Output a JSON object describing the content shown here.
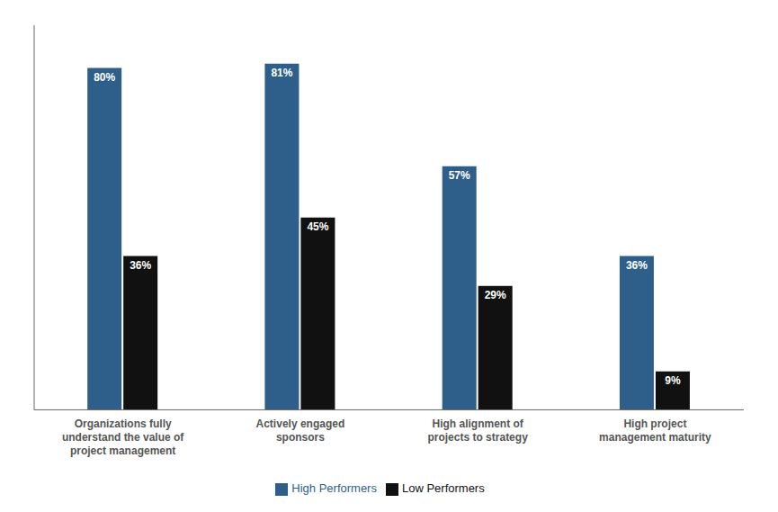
{
  "chart_data": {
    "type": "bar",
    "categories": [
      "Organizations fully\nunderstand the value of\nproject management",
      "Actively engaged\nsponsors",
      "High alignment of\nprojects to strategy",
      "High project\nmanagement maturity"
    ],
    "series": [
      {
        "name": "High Performers",
        "color": "#2E5F8A",
        "values": [
          80,
          81,
          57,
          36
        ],
        "value_labels": [
          "80%",
          "81%",
          "57%",
          "36%"
        ]
      },
      {
        "name": "Low Performers",
        "color": "#111111",
        "values": [
          36,
          45,
          29,
          9
        ],
        "value_labels": [
          "36%",
          "45%",
          "29%",
          "9%"
        ]
      }
    ],
    "ylim": [
      0,
      90
    ],
    "data_labels": true,
    "tick_labels": "x",
    "legend": "bottom",
    "grid": false
  }
}
